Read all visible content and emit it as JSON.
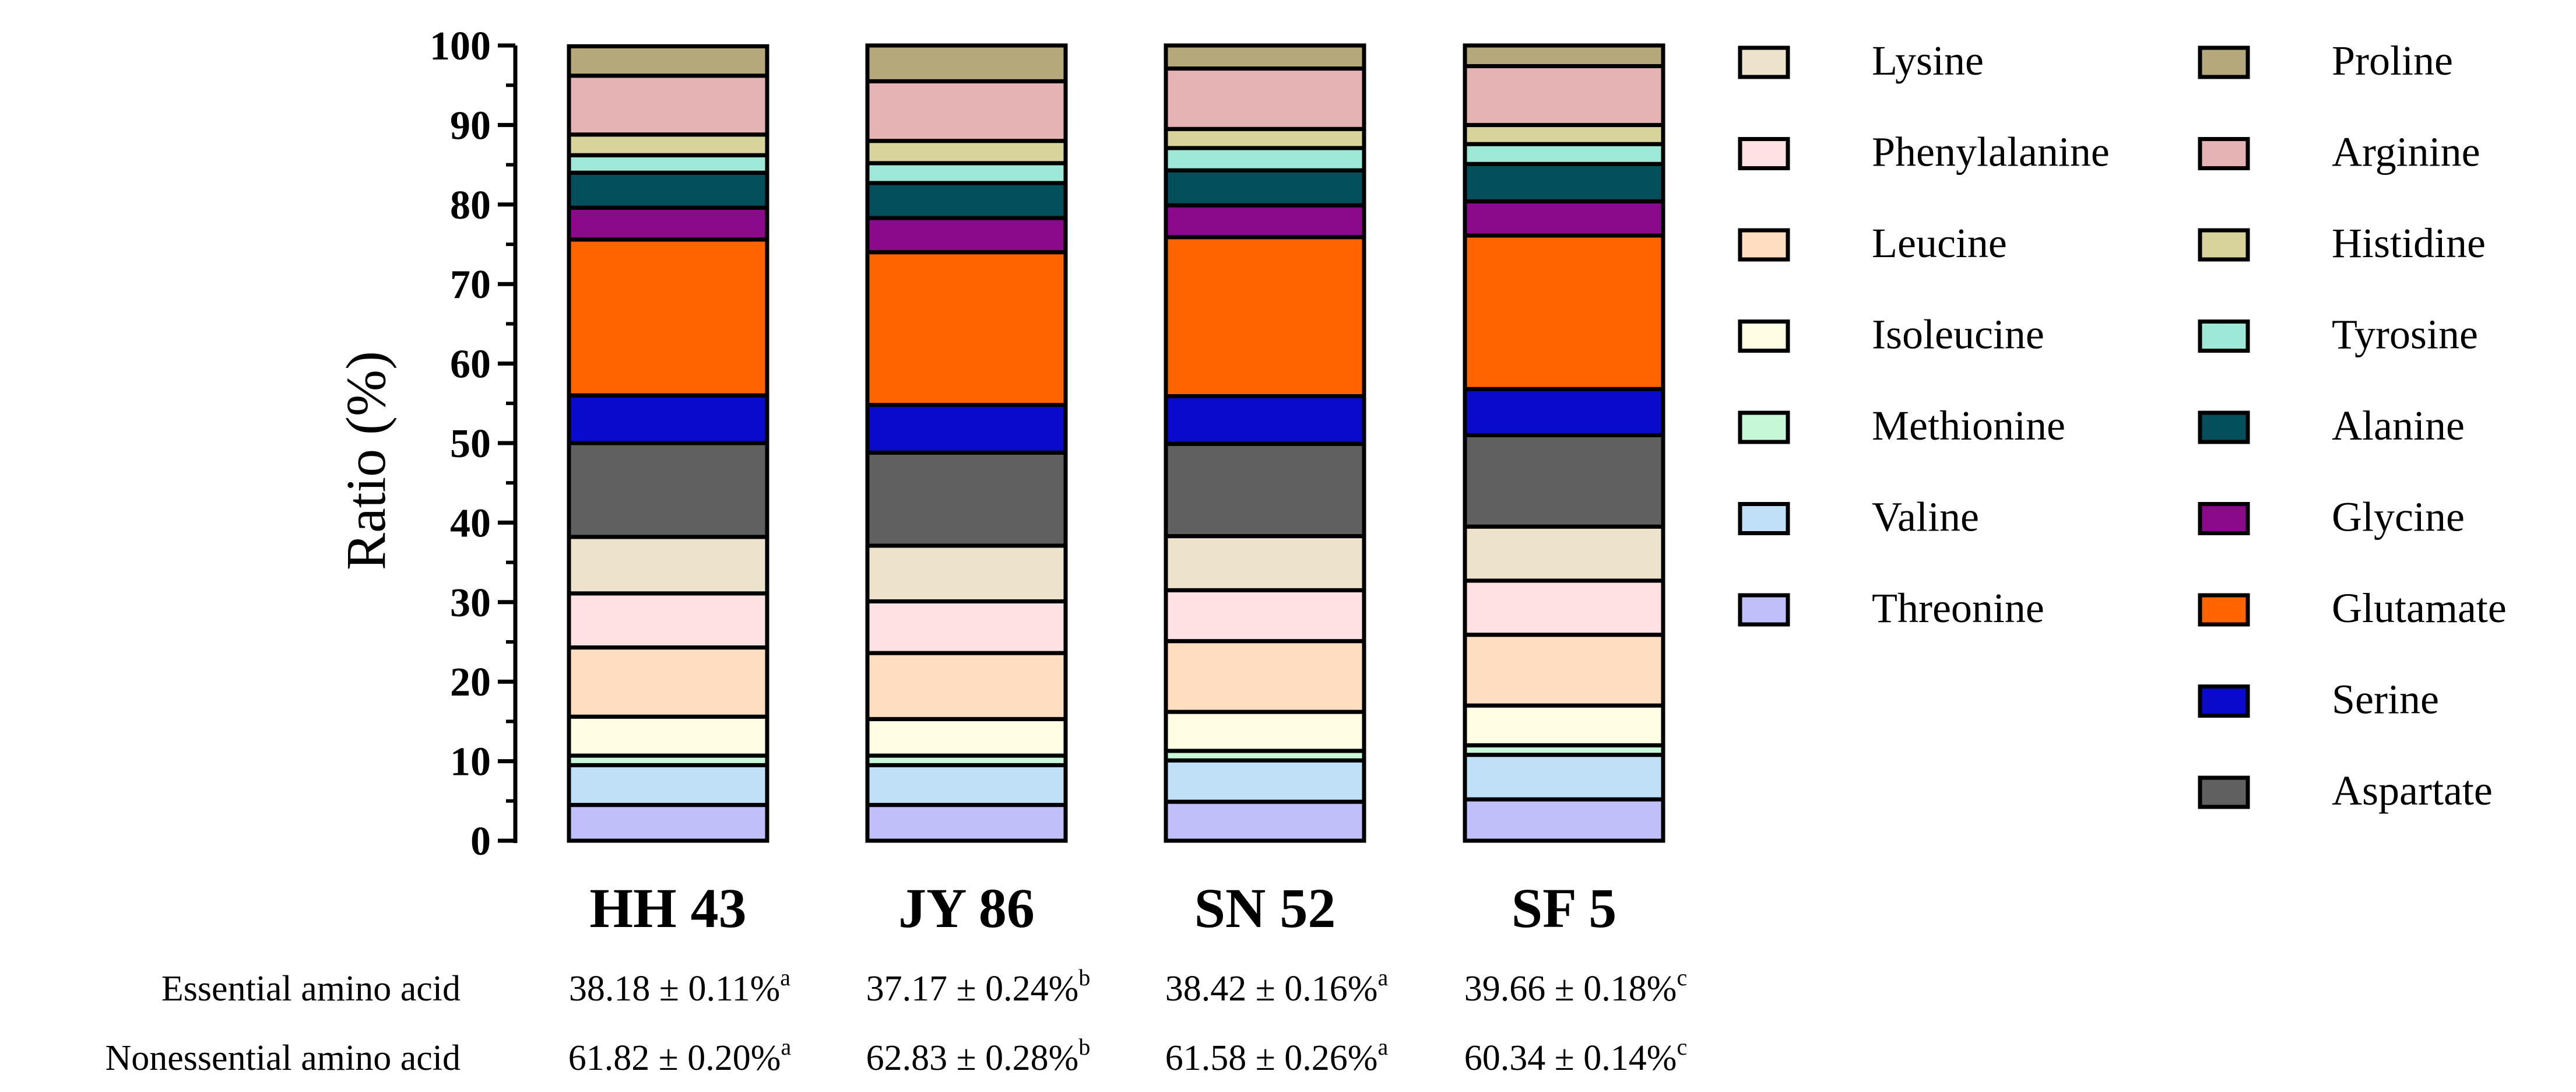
{
  "chart_data": {
    "type": "stacked-bar",
    "ylabel": "Ratio (%)",
    "ylim": [
      0,
      100
    ],
    "yticks": [
      0,
      10,
      20,
      30,
      40,
      50,
      60,
      70,
      80,
      90,
      100
    ],
    "categories": [
      "HH 43",
      "JY 86",
      "SN 52",
      "SF 5"
    ],
    "series": [
      {
        "name": "Threonine",
        "color": "#bfbffa",
        "values": [
          4.5,
          4.5,
          4.9,
          5.2
        ]
      },
      {
        "name": "Valine",
        "color": "#bfe0f7",
        "values": [
          5.0,
          5.0,
          5.2,
          5.6
        ]
      },
      {
        "name": "Methionine",
        "color": "#c6f7d6",
        "values": [
          1.2,
          1.2,
          1.2,
          1.2
        ]
      },
      {
        "name": "Isoleucine",
        "color": "#fffde3",
        "values": [
          4.9,
          4.6,
          4.9,
          5.0
        ]
      },
      {
        "name": "Leucine",
        "color": "#ffddc1",
        "values": [
          8.7,
          8.3,
          8.9,
          8.9
        ]
      },
      {
        "name": "Phenylalanine",
        "color": "#ffe0e3",
        "values": [
          6.8,
          6.5,
          6.4,
          6.8
        ]
      },
      {
        "name": "Lysine",
        "color": "#ede3cc",
        "values": [
          7.1,
          7.0,
          6.8,
          6.8
        ]
      },
      {
        "name": "Aspartate",
        "color": "#606060",
        "values": [
          11.8,
          11.7,
          11.6,
          11.5
        ]
      },
      {
        "name": "Serine",
        "color": "#0a0acc",
        "values": [
          6.0,
          6.0,
          6.0,
          5.8
        ]
      },
      {
        "name": "Glutamate",
        "color": "#ff6400",
        "values": [
          19.6,
          19.2,
          20.0,
          19.3
        ]
      },
      {
        "name": "Glycine",
        "color": "#8b0a8b",
        "values": [
          4.0,
          4.3,
          4.0,
          4.3
        ]
      },
      {
        "name": "Alanine",
        "color": "#044f5c",
        "values": [
          4.4,
          4.4,
          4.4,
          4.7
        ]
      },
      {
        "name": "Tyrosine",
        "color": "#9de8d6",
        "values": [
          2.2,
          2.5,
          2.8,
          2.5
        ]
      },
      {
        "name": "Histidine",
        "color": "#d8d39a",
        "values": [
          2.6,
          2.8,
          2.4,
          2.4
        ]
      },
      {
        "name": "Arginine",
        "color": "#e5b3b3",
        "values": [
          7.4,
          7.5,
          7.6,
          7.4
        ]
      },
      {
        "name": "Proline",
        "color": "#b5a87a",
        "values": [
          3.7,
          4.5,
          2.9,
          2.6
        ]
      }
    ],
    "legend_columns": [
      [
        "Lysine",
        "Phenylalanine",
        "Leucine",
        "Isoleucine",
        "Methionine",
        "Valine",
        "Threonine"
      ],
      [
        "Proline",
        "Arginine",
        "Histidine",
        "Tyrosine",
        "Alanine",
        "Glycine",
        "Glutamate",
        "Serine",
        "Aspartate"
      ]
    ],
    "legend_position": "right"
  },
  "stats": [
    {
      "label": "Essential amino acid",
      "values": [
        {
          "text": "38.18 ± 0.11%",
          "sup": "a"
        },
        {
          "text": "37.17 ± 0.24%",
          "sup": "b"
        },
        {
          "text": "38.42 ± 0.16%",
          "sup": "a"
        },
        {
          "text": "39.66 ± 0.18%",
          "sup": "c"
        }
      ]
    },
    {
      "label": "Nonessential amino acid",
      "values": [
        {
          "text": "61.82 ± 0.20%",
          "sup": "a"
        },
        {
          "text": "62.83 ± 0.28%",
          "sup": "b"
        },
        {
          "text": "61.58 ± 0.26%",
          "sup": "a"
        },
        {
          "text": "60.34 ± 0.14%",
          "sup": "c"
        }
      ]
    }
  ]
}
